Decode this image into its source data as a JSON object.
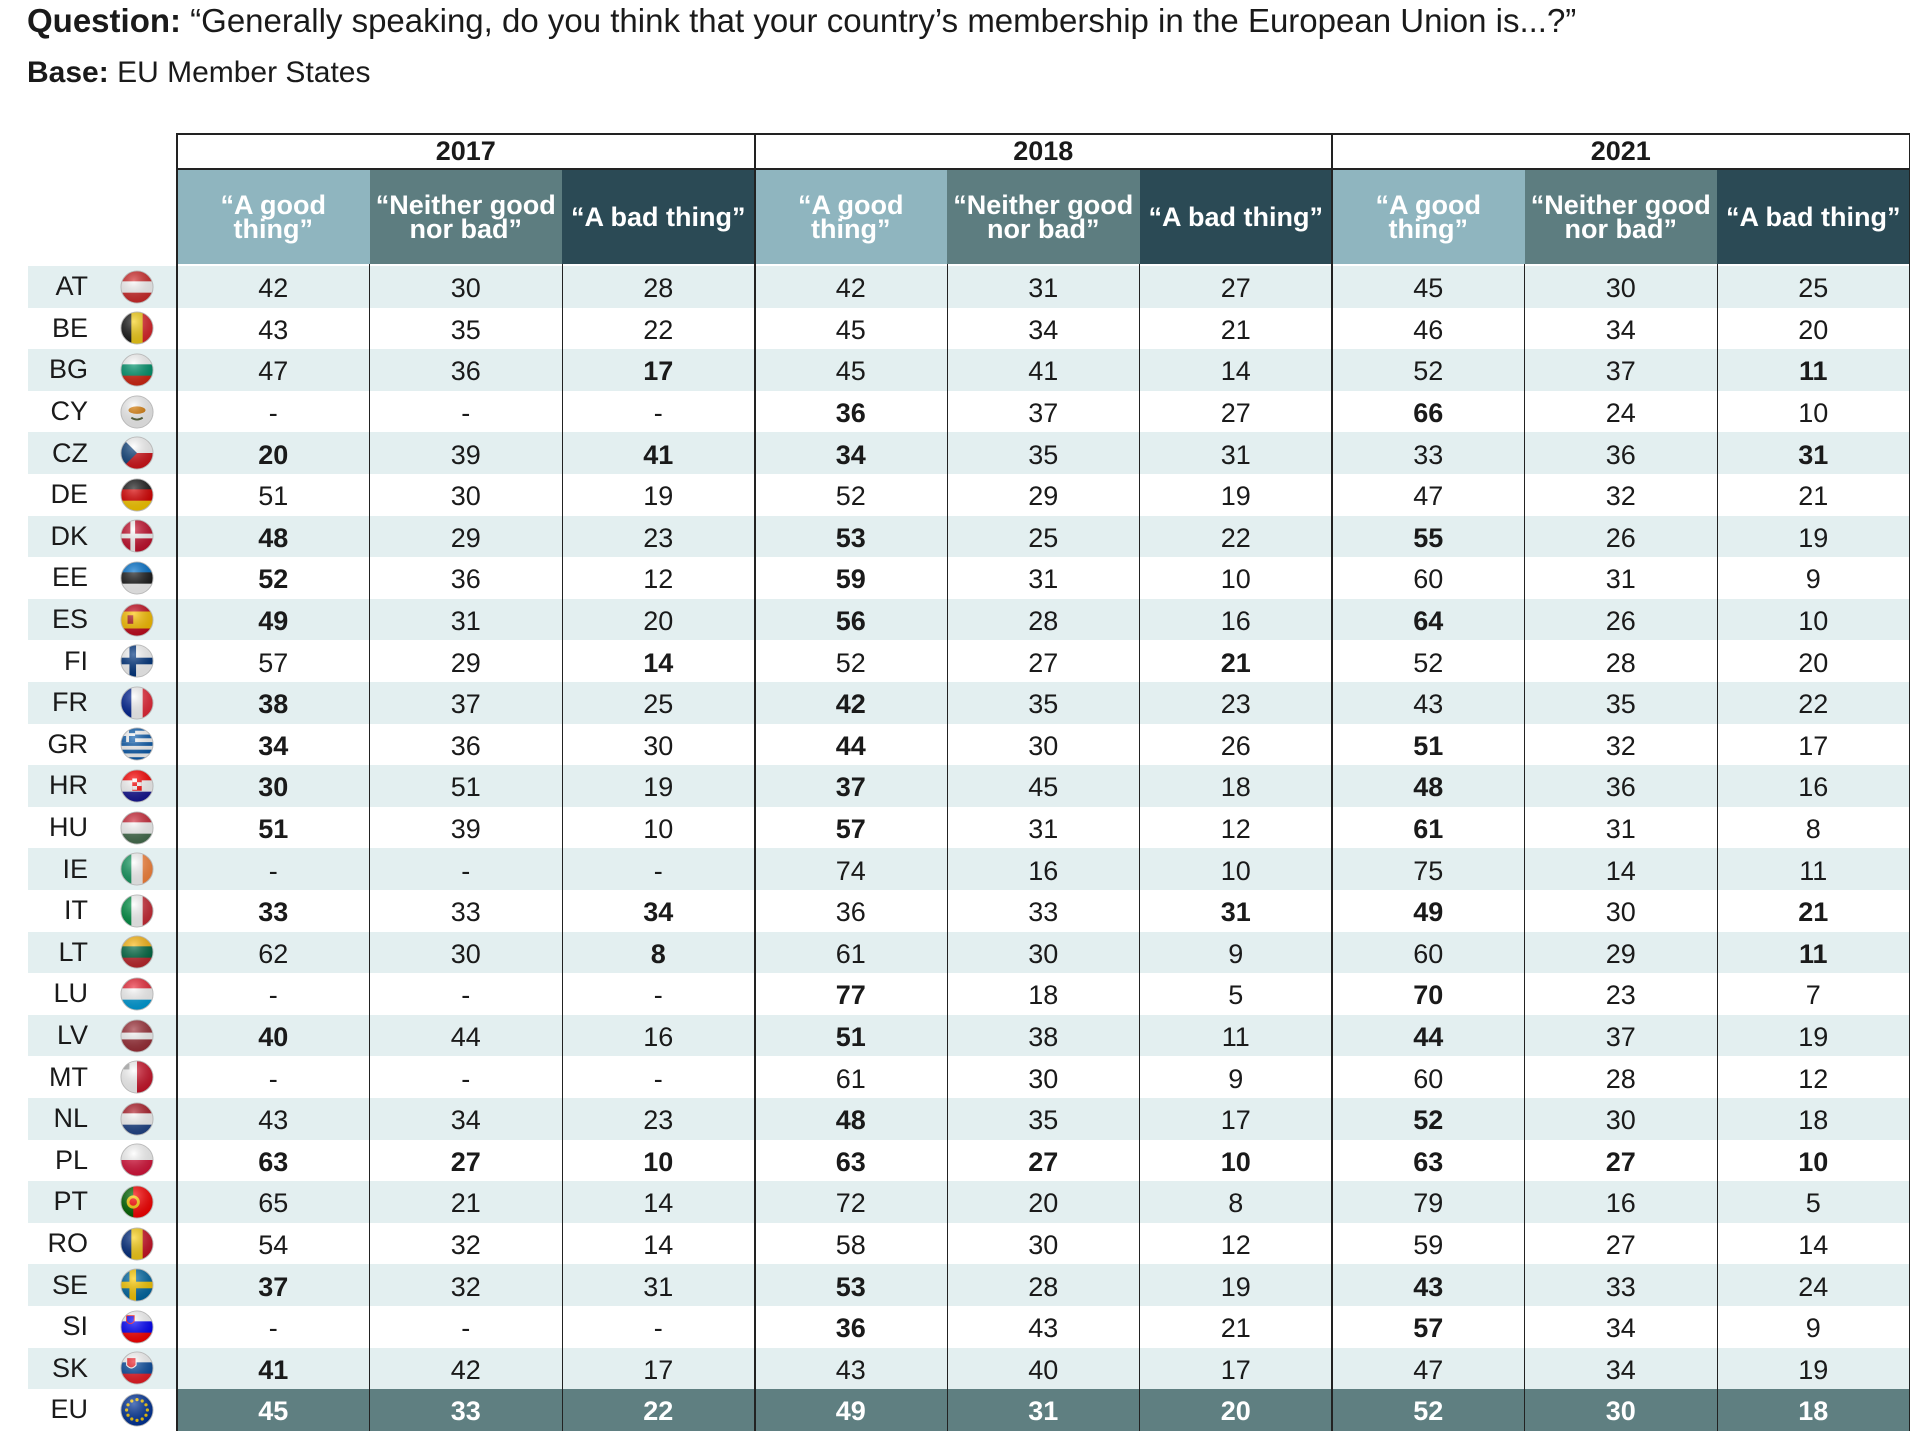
{
  "header": {
    "question_label": "Question:",
    "question_text": "“Generally speaking, do you think that your country’s membership in the European Union is...?”",
    "base_label": "Base:",
    "base_text": "EU Member States"
  },
  "colors": {
    "good_header": "#8fb5bf",
    "neither_header": "#5d7d80",
    "bad_header": "#2b4a55",
    "row_alt": "#e3eff0",
    "eu_row": "#5f7f81"
  },
  "chart_data": {
    "type": "table",
    "years": [
      "2017",
      "2018",
      "2021"
    ],
    "columns": [
      "“A good thing”",
      "“Neither good nor bad”",
      "“A bad thing”"
    ],
    "rows": [
      {
        "code": "AT",
        "flag": "austria-flag-icon",
        "values": [
          [
            "42",
            "30",
            "28"
          ],
          [
            "42",
            "31",
            "27"
          ],
          [
            "45",
            "30",
            "25"
          ]
        ],
        "bold": [
          [
            0,
            0,
            0
          ],
          [
            0,
            0,
            0
          ],
          [
            0,
            0,
            0
          ]
        ]
      },
      {
        "code": "BE",
        "flag": "belgium-flag-icon",
        "values": [
          [
            "43",
            "35",
            "22"
          ],
          [
            "45",
            "34",
            "21"
          ],
          [
            "46",
            "34",
            "20"
          ]
        ],
        "bold": [
          [
            0,
            0,
            0
          ],
          [
            0,
            0,
            0
          ],
          [
            0,
            0,
            0
          ]
        ]
      },
      {
        "code": "BG",
        "flag": "bulgaria-flag-icon",
        "values": [
          [
            "47",
            "36",
            "17"
          ],
          [
            "45",
            "41",
            "14"
          ],
          [
            "52",
            "37",
            "11"
          ]
        ],
        "bold": [
          [
            0,
            0,
            1
          ],
          [
            0,
            0,
            0
          ],
          [
            0,
            0,
            1
          ]
        ]
      },
      {
        "code": "CY",
        "flag": "cyprus-flag-icon",
        "values": [
          [
            "-",
            "-",
            "-"
          ],
          [
            "36",
            "37",
            "27"
          ],
          [
            "66",
            "24",
            "10"
          ]
        ],
        "bold": [
          [
            0,
            0,
            0
          ],
          [
            1,
            0,
            0
          ],
          [
            1,
            0,
            0
          ]
        ]
      },
      {
        "code": "CZ",
        "flag": "czechia-flag-icon",
        "values": [
          [
            "20",
            "39",
            "41"
          ],
          [
            "34",
            "35",
            "31"
          ],
          [
            "33",
            "36",
            "31"
          ]
        ],
        "bold": [
          [
            1,
            0,
            1
          ],
          [
            1,
            0,
            0
          ],
          [
            0,
            0,
            1
          ]
        ]
      },
      {
        "code": "DE",
        "flag": "germany-flag-icon",
        "values": [
          [
            "51",
            "30",
            "19"
          ],
          [
            "52",
            "29",
            "19"
          ],
          [
            "47",
            "32",
            "21"
          ]
        ],
        "bold": [
          [
            0,
            0,
            0
          ],
          [
            0,
            0,
            0
          ],
          [
            0,
            0,
            0
          ]
        ]
      },
      {
        "code": "DK",
        "flag": "denmark-flag-icon",
        "values": [
          [
            "48",
            "29",
            "23"
          ],
          [
            "53",
            "25",
            "22"
          ],
          [
            "55",
            "26",
            "19"
          ]
        ],
        "bold": [
          [
            1,
            0,
            0
          ],
          [
            1,
            0,
            0
          ],
          [
            1,
            0,
            0
          ]
        ]
      },
      {
        "code": "EE",
        "flag": "estonia-flag-icon",
        "values": [
          [
            "52",
            "36",
            "12"
          ],
          [
            "59",
            "31",
            "10"
          ],
          [
            "60",
            "31",
            "9"
          ]
        ],
        "bold": [
          [
            1,
            0,
            0
          ],
          [
            1,
            0,
            0
          ],
          [
            0,
            0,
            0
          ]
        ]
      },
      {
        "code": "ES",
        "flag": "spain-flag-icon",
        "values": [
          [
            "49",
            "31",
            "20"
          ],
          [
            "56",
            "28",
            "16"
          ],
          [
            "64",
            "26",
            "10"
          ]
        ],
        "bold": [
          [
            1,
            0,
            0
          ],
          [
            1,
            0,
            0
          ],
          [
            1,
            0,
            0
          ]
        ]
      },
      {
        "code": "FI",
        "flag": "finland-flag-icon",
        "values": [
          [
            "57",
            "29",
            "14"
          ],
          [
            "52",
            "27",
            "21"
          ],
          [
            "52",
            "28",
            "20"
          ]
        ],
        "bold": [
          [
            0,
            0,
            1
          ],
          [
            0,
            0,
            1
          ],
          [
            0,
            0,
            0
          ]
        ]
      },
      {
        "code": "FR",
        "flag": "france-flag-icon",
        "values": [
          [
            "38",
            "37",
            "25"
          ],
          [
            "42",
            "35",
            "23"
          ],
          [
            "43",
            "35",
            "22"
          ]
        ],
        "bold": [
          [
            1,
            0,
            0
          ],
          [
            1,
            0,
            0
          ],
          [
            0,
            0,
            0
          ]
        ]
      },
      {
        "code": "GR",
        "flag": "greece-flag-icon",
        "values": [
          [
            "34",
            "36",
            "30"
          ],
          [
            "44",
            "30",
            "26"
          ],
          [
            "51",
            "32",
            "17"
          ]
        ],
        "bold": [
          [
            1,
            0,
            0
          ],
          [
            1,
            0,
            0
          ],
          [
            1,
            0,
            0
          ]
        ]
      },
      {
        "code": "HR",
        "flag": "croatia-flag-icon",
        "values": [
          [
            "30",
            "51",
            "19"
          ],
          [
            "37",
            "45",
            "18"
          ],
          [
            "48",
            "36",
            "16"
          ]
        ],
        "bold": [
          [
            1,
            0,
            0
          ],
          [
            1,
            0,
            0
          ],
          [
            1,
            0,
            0
          ]
        ]
      },
      {
        "code": "HU",
        "flag": "hungary-flag-icon",
        "values": [
          [
            "51",
            "39",
            "10"
          ],
          [
            "57",
            "31",
            "12"
          ],
          [
            "61",
            "31",
            "8"
          ]
        ],
        "bold": [
          [
            1,
            0,
            0
          ],
          [
            1,
            0,
            0
          ],
          [
            1,
            0,
            0
          ]
        ]
      },
      {
        "code": "IE",
        "flag": "ireland-flag-icon",
        "values": [
          [
            "-",
            "-",
            "-"
          ],
          [
            "74",
            "16",
            "10"
          ],
          [
            "75",
            "14",
            "11"
          ]
        ],
        "bold": [
          [
            0,
            0,
            0
          ],
          [
            0,
            0,
            0
          ],
          [
            0,
            0,
            0
          ]
        ]
      },
      {
        "code": "IT",
        "flag": "italy-flag-icon",
        "values": [
          [
            "33",
            "33",
            "34"
          ],
          [
            "36",
            "33",
            "31"
          ],
          [
            "49",
            "30",
            "21"
          ]
        ],
        "bold": [
          [
            1,
            0,
            1
          ],
          [
            0,
            0,
            1
          ],
          [
            1,
            0,
            1
          ]
        ]
      },
      {
        "code": "LT",
        "flag": "lithuania-flag-icon",
        "values": [
          [
            "62",
            "30",
            "8"
          ],
          [
            "61",
            "30",
            "9"
          ],
          [
            "60",
            "29",
            "11"
          ]
        ],
        "bold": [
          [
            0,
            0,
            1
          ],
          [
            0,
            0,
            0
          ],
          [
            0,
            0,
            1
          ]
        ]
      },
      {
        "code": "LU",
        "flag": "luxembourg-flag-icon",
        "values": [
          [
            "-",
            "-",
            "-"
          ],
          [
            "77",
            "18",
            "5"
          ],
          [
            "70",
            "23",
            "7"
          ]
        ],
        "bold": [
          [
            0,
            0,
            0
          ],
          [
            1,
            0,
            0
          ],
          [
            1,
            0,
            0
          ]
        ]
      },
      {
        "code": "LV",
        "flag": "latvia-flag-icon",
        "values": [
          [
            "40",
            "44",
            "16"
          ],
          [
            "51",
            "38",
            "11"
          ],
          [
            "44",
            "37",
            "19"
          ]
        ],
        "bold": [
          [
            1,
            0,
            0
          ],
          [
            1,
            0,
            0
          ],
          [
            1,
            0,
            0
          ]
        ]
      },
      {
        "code": "MT",
        "flag": "malta-flag-icon",
        "values": [
          [
            "-",
            "-",
            "-"
          ],
          [
            "61",
            "30",
            "9"
          ],
          [
            "60",
            "28",
            "12"
          ]
        ],
        "bold": [
          [
            0,
            0,
            0
          ],
          [
            0,
            0,
            0
          ],
          [
            0,
            0,
            0
          ]
        ]
      },
      {
        "code": "NL",
        "flag": "netherlands-flag-icon",
        "values": [
          [
            "43",
            "34",
            "23"
          ],
          [
            "48",
            "35",
            "17"
          ],
          [
            "52",
            "30",
            "18"
          ]
        ],
        "bold": [
          [
            0,
            0,
            0
          ],
          [
            1,
            0,
            0
          ],
          [
            1,
            0,
            0
          ]
        ]
      },
      {
        "code": "PL",
        "flag": "poland-flag-icon",
        "values": [
          [
            "63",
            "27",
            "10"
          ],
          [
            "63",
            "27",
            "10"
          ],
          [
            "63",
            "27",
            "10"
          ]
        ],
        "bold": [
          [
            1,
            1,
            1
          ],
          [
            1,
            1,
            1
          ],
          [
            1,
            1,
            1
          ]
        ]
      },
      {
        "code": "PT",
        "flag": "portugal-flag-icon",
        "values": [
          [
            "65",
            "21",
            "14"
          ],
          [
            "72",
            "20",
            "8"
          ],
          [
            "79",
            "16",
            "5"
          ]
        ],
        "bold": [
          [
            0,
            0,
            0
          ],
          [
            0,
            0,
            0
          ],
          [
            0,
            0,
            0
          ]
        ]
      },
      {
        "code": "RO",
        "flag": "romania-flag-icon",
        "values": [
          [
            "54",
            "32",
            "14"
          ],
          [
            "58",
            "30",
            "12"
          ],
          [
            "59",
            "27",
            "14"
          ]
        ],
        "bold": [
          [
            0,
            0,
            0
          ],
          [
            0,
            0,
            0
          ],
          [
            0,
            0,
            0
          ]
        ]
      },
      {
        "code": "SE",
        "flag": "sweden-flag-icon",
        "values": [
          [
            "37",
            "32",
            "31"
          ],
          [
            "53",
            "28",
            "19"
          ],
          [
            "43",
            "33",
            "24"
          ]
        ],
        "bold": [
          [
            1,
            0,
            0
          ],
          [
            1,
            0,
            0
          ],
          [
            1,
            0,
            0
          ]
        ]
      },
      {
        "code": "SI",
        "flag": "slovenia-flag-icon",
        "values": [
          [
            "-",
            "-",
            "-"
          ],
          [
            "36",
            "43",
            "21"
          ],
          [
            "57",
            "34",
            "9"
          ]
        ],
        "bold": [
          [
            0,
            0,
            0
          ],
          [
            1,
            0,
            0
          ],
          [
            1,
            0,
            0
          ]
        ]
      },
      {
        "code": "SK",
        "flag": "slovakia-flag-icon",
        "values": [
          [
            "41",
            "42",
            "17"
          ],
          [
            "43",
            "40",
            "17"
          ],
          [
            "47",
            "34",
            "19"
          ]
        ],
        "bold": [
          [
            1,
            0,
            0
          ],
          [
            0,
            0,
            0
          ],
          [
            0,
            0,
            0
          ]
        ]
      }
    ],
    "eu_row": {
      "code": "EU",
      "flag": "eu-flag-icon",
      "values": [
        [
          "45",
          "33",
          "22"
        ],
        [
          "49",
          "31",
          "20"
        ],
        [
          "52",
          "30",
          "18"
        ]
      ]
    }
  }
}
